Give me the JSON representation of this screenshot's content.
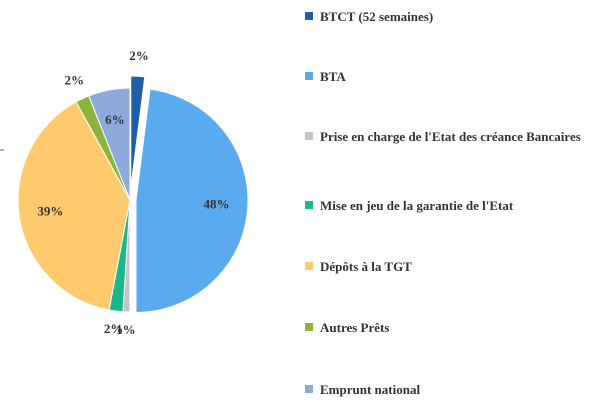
{
  "chart_data": {
    "type": "pie",
    "categories": [
      "BTCT (52 semaines)",
      "BTA",
      "Prise en charge de l'Etat des créance Bancaires",
      "Mise en jeu de la garantie de l'Etat",
      "Dépôts à la TGT",
      "Autres Prêts",
      "Emprunt national"
    ],
    "values": [
      2,
      48,
      1,
      2,
      39,
      2,
      6
    ],
    "value_labels": [
      "2%",
      "48%",
      "1%",
      "2%",
      "39%",
      "2%",
      "6%"
    ],
    "colors": [
      "#1f5fa8",
      "#5aaaf0",
      "#c4c4c4",
      "#1db58a",
      "#ffca6e",
      "#8db33a",
      "#8ea9db"
    ],
    "legend": "right"
  }
}
